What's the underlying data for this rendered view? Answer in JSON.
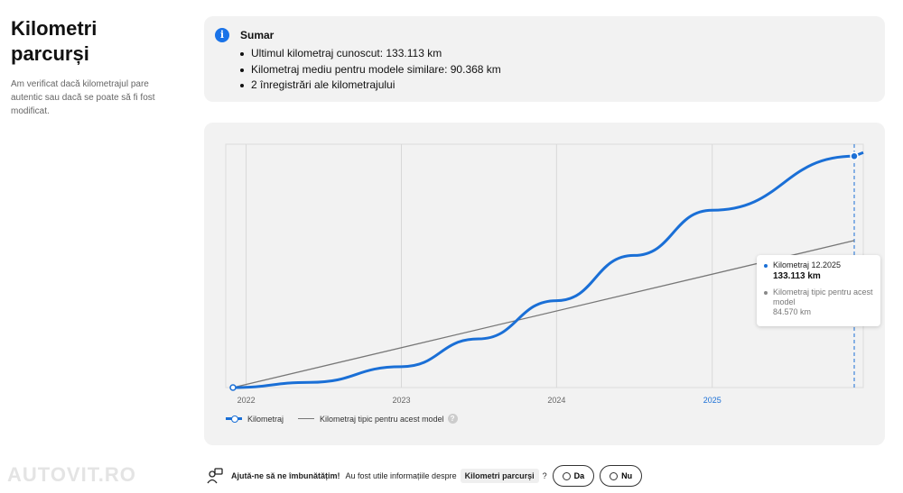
{
  "header": {
    "title_line1": "Kilometri",
    "title_line2": "parcurși",
    "description": "Am verificat dacă kilometrajul pare autentic sau dacă se poate să fi fost modificat."
  },
  "summary": {
    "title": "Sumar",
    "icon": "info-icon",
    "items": [
      "Ultimul kilometraj cunoscut: 133.113 km",
      "Kilometraj mediu pentru modele similare: 90.368 km",
      "2 înregistrări ale kilometrajului"
    ]
  },
  "chart_data": {
    "type": "line",
    "x_ticks": [
      "2022",
      "2023",
      "2024",
      "2025"
    ],
    "highlighted_tick": "2025",
    "series": [
      {
        "name": "Kilometraj",
        "color": "#1a6fd6",
        "points": [
          {
            "date": "2021-12",
            "km": 0
          },
          {
            "date": "2022-06",
            "km": 3000
          },
          {
            "date": "2023-01",
            "km": 12000
          },
          {
            "date": "2023-07",
            "km": 28000
          },
          {
            "date": "2024-01",
            "km": 50000
          },
          {
            "date": "2024-07",
            "km": 76000
          },
          {
            "date": "2025-01",
            "km": 102000
          },
          {
            "date": "2025-12",
            "km": 133113
          }
        ]
      },
      {
        "name": "Kilometraj tipic pentru acest model",
        "color": "#777777",
        "points": [
          {
            "date": "2021-12",
            "km": 0
          },
          {
            "date": "2025-12",
            "km": 84570
          }
        ]
      }
    ],
    "grid": true
  },
  "tooltip": {
    "label_1": "Kilometraj 12.2025",
    "value_1": "133.113 km",
    "label_2": "Kilometraj tipic pentru acest model",
    "value_2": "84.570 km"
  },
  "legend": {
    "item_1": "Kilometraj",
    "item_2": "Kilometraj tipic pentru acest model",
    "help": "?"
  },
  "feedback": {
    "prompt_strong": "Ajută-ne să ne îmbunătățim!",
    "prompt": "Au fost utile informațiile despre",
    "topic": "Kilometri parcurși",
    "question_mark": "?",
    "yes": "Da",
    "no": "Nu"
  },
  "watermark": "AUTOVIT.RO",
  "colors": {
    "accent": "#1a6fd6",
    "typical": "#777777",
    "card_bg": "#f2f2f2"
  }
}
